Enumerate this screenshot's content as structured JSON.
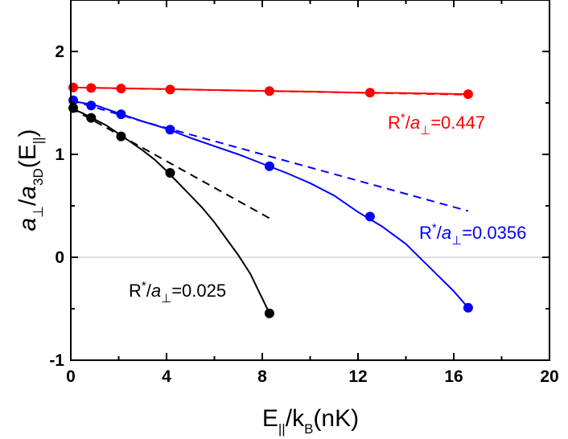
{
  "chart_data": {
    "type": "line",
    "xlim": [
      0,
      20
    ],
    "ylim": [
      -1,
      2.5
    ],
    "x_ticks": [
      0,
      4,
      8,
      12,
      16,
      20
    ],
    "y_ticks": [
      -1,
      0,
      1,
      2
    ],
    "zero_line": 0,
    "grid": false,
    "xlabel": {
      "main": "E",
      "sub": "||",
      "rest": "/k",
      "sub2": "B",
      "tail": "(nK)"
    },
    "ylabel": {
      "a": "a",
      "sub1": "⊥",
      "slash": "/",
      "a2": "a",
      "sub2": "3D",
      "tail": "(E",
      "sub3": "||",
      "close": ")"
    },
    "series": [
      {
        "color": "#ff0000",
        "points": {
          "x": [
            0.1,
            0.85,
            2.1,
            4.15,
            8.3,
            12.5,
            16.6
          ],
          "y": [
            1.65,
            1.645,
            1.64,
            1.63,
            1.615,
            1.6,
            1.585
          ]
        },
        "fit": {
          "x": [
            0,
            2,
            4,
            6,
            8,
            10,
            12,
            14,
            16.6
          ],
          "y": [
            1.65,
            1.643,
            1.635,
            1.625,
            1.617,
            1.61,
            1.6,
            1.595,
            1.585
          ]
        },
        "dashed": {
          "x": [
            0,
            16.6
          ],
          "y": [
            1.65,
            1.58
          ]
        },
        "annotation": {
          "main": "R",
          "sup": "*",
          "slash": "/",
          "a": "a",
          "sub": "⊥",
          "value": "=0.447"
        }
      },
      {
        "color": "#0000ff",
        "points": {
          "x": [
            0.1,
            0.85,
            2.1,
            4.15,
            8.3,
            12.5,
            16.6
          ],
          "y": [
            1.525,
            1.475,
            1.39,
            1.24,
            0.885,
            0.395,
            -0.49
          ]
        },
        "fit": {
          "x": [
            0,
            1,
            2,
            3,
            4,
            5,
            6,
            7,
            8,
            9,
            10,
            11,
            12,
            13,
            14,
            15,
            16,
            16.6
          ],
          "y": [
            1.52,
            1.48,
            1.4,
            1.32,
            1.25,
            1.16,
            1.08,
            1.0,
            0.91,
            0.82,
            0.72,
            0.6,
            0.44,
            0.3,
            0.13,
            -0.1,
            -0.33,
            -0.49
          ]
        },
        "dashed": {
          "x": [
            0,
            3,
            16.6
          ],
          "y": [
            1.525,
            1.32,
            0.45
          ]
        },
        "annotation": {
          "main": "R",
          "sup": "*",
          "slash": "/",
          "a": "a",
          "sub": "⊥",
          "value": "=0.0356"
        }
      },
      {
        "color": "#000000",
        "points": {
          "x": [
            0.1,
            0.85,
            2.1,
            4.15,
            8.3
          ],
          "y": [
            1.45,
            1.355,
            1.175,
            0.82,
            -0.545
          ]
        },
        "fit": {
          "x": [
            0,
            0.5,
            1,
            1.5,
            2,
            2.5,
            3,
            3.5,
            4,
            4.5,
            5,
            5.5,
            6,
            6.5,
            7,
            7.5,
            8,
            8.3
          ],
          "y": [
            1.45,
            1.4,
            1.34,
            1.28,
            1.2,
            1.12,
            1.04,
            0.95,
            0.84,
            0.72,
            0.6,
            0.48,
            0.34,
            0.18,
            0.02,
            -0.16,
            -0.4,
            -0.545
          ]
        },
        "dashed": {
          "x": [
            0,
            8.3
          ],
          "y": [
            1.45,
            0.38
          ]
        },
        "annotation": {
          "main": "R",
          "sup": "*",
          "slash": "/",
          "a": "a",
          "sub": "⊥",
          "value": "=0.025"
        }
      }
    ]
  }
}
